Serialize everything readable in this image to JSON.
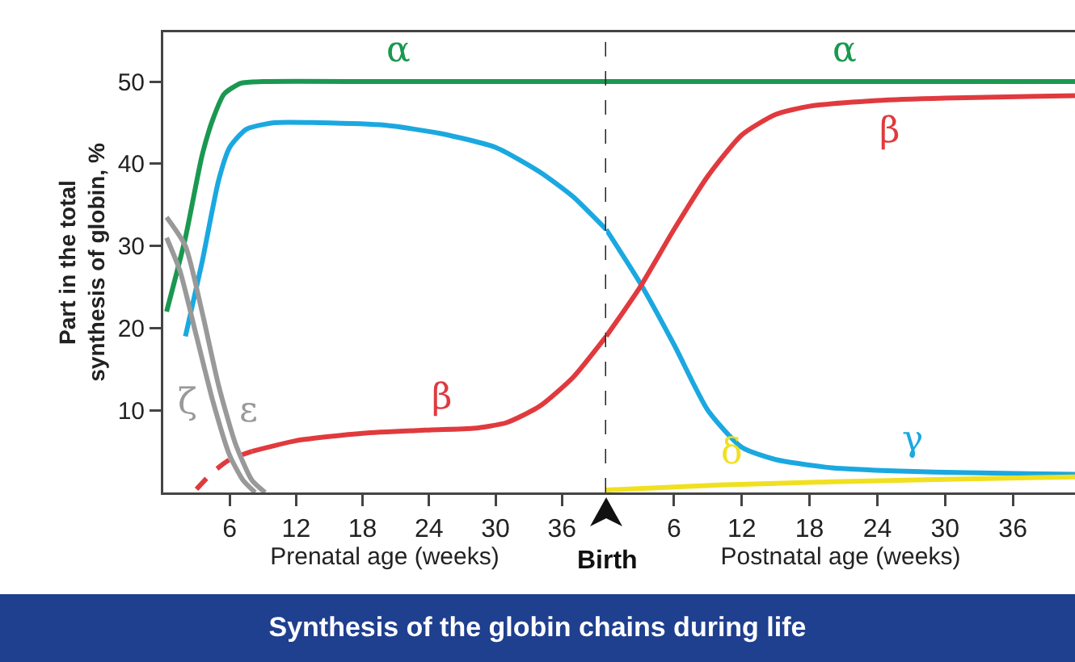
{
  "chart_data": [
    {
      "type": "line",
      "title": "Synthesis of the globin chains during life",
      "xlabel": "Prenatal age (weeks)",
      "ylabel": "Part in the total\nsynthesis of globin, %",
      "xlim": [
        0,
        40
      ],
      "ylim": [
        0,
        56
      ],
      "xticks": [
        6,
        12,
        18,
        24,
        30,
        36
      ],
      "yticks": [
        10,
        20,
        30,
        40,
        50
      ],
      "grid": false,
      "marker": "none",
      "ref_lines": [
        {
          "axis": "x",
          "value": 40,
          "label": "Birth",
          "color": "#222222",
          "line_style": "dashed"
        }
      ],
      "series": [
        {
          "color": "#1a9850",
          "x": [
            0.3,
            2,
            3.5,
            4.5,
            5.5,
            7,
            9,
            20,
            40
          ],
          "values": [
            22,
            31,
            41,
            45.5,
            48.5,
            49.8,
            50,
            50,
            50
          ]
        },
        {
          "color": "#1ba8e0",
          "x": [
            2,
            3.5,
            5,
            6,
            7.5,
            10,
            14,
            20,
            25,
            30,
            34,
            37,
            40
          ],
          "values": [
            19,
            28,
            38,
            42,
            44.2,
            45,
            45,
            44.7,
            43.7,
            42,
            39,
            36,
            32
          ]
        },
        {
          "color": "#e03a3e",
          "line_style": "dashed",
          "x": [
            3,
            4.5,
            6,
            8
          ],
          "values": [
            0.4,
            2.5,
            4,
            5
          ]
        },
        {
          "color": "#e03a3e",
          "x": [
            8,
            12,
            18,
            24,
            28,
            31,
            34,
            37,
            40
          ],
          "values": [
            5,
            6.3,
            7.2,
            7.6,
            7.8,
            8.5,
            10.5,
            14,
            19
          ]
        },
        {
          "color": "#999999",
          "x": [
            0.3,
            2,
            3.5,
            5,
            6.5,
            8,
            9.2
          ],
          "values": [
            33.5,
            30,
            22,
            13,
            6,
            1.5,
            0
          ]
        },
        {
          "color": "#999999",
          "x": [
            0.3,
            1.5,
            3,
            4.5,
            6,
            7.2,
            8.3
          ],
          "values": [
            31,
            27,
            19,
            11,
            4.5,
            1.5,
            0
          ]
        }
      ],
      "annotations": [
        {
          "text": "α",
          "x": 20,
          "y": 50
        },
        {
          "text": "β",
          "x": 24,
          "y": 7.6
        },
        {
          "text": "ε",
          "x": 6.5,
          "y": 6
        },
        {
          "text": "ζ",
          "x": 4.5,
          "y": 11
        }
      ]
    },
    {
      "type": "line",
      "xlabel": "Postnatal age (weeks)",
      "xlim": [
        0,
        41.5
      ],
      "ylim": [
        0,
        56
      ],
      "xticks": [
        6,
        12,
        18,
        24,
        30,
        36
      ],
      "tick_labels": "x",
      "grid": false,
      "marker": "none",
      "series": [
        {
          "color": "#1a9850",
          "x": [
            0,
            20,
            41.5
          ],
          "values": [
            50,
            50,
            50
          ]
        },
        {
          "color": "#1ba8e0",
          "x": [
            0,
            3,
            6,
            9,
            12,
            15,
            20,
            26,
            32,
            41.5
          ],
          "values": [
            32,
            25.5,
            18,
            10,
            5.5,
            4,
            3,
            2.6,
            2.4,
            2.2
          ]
        },
        {
          "color": "#e03a3e",
          "x": [
            0,
            3,
            6,
            9,
            12,
            15,
            18,
            24,
            30,
            41.5
          ],
          "values": [
            19,
            25,
            32,
            38.5,
            43.5,
            46,
            47,
            47.7,
            48,
            48.3
          ]
        },
        {
          "color": "#f0e020",
          "x": [
            0,
            10,
            20,
            30,
            41.5
          ],
          "values": [
            0.3,
            0.9,
            1.3,
            1.6,
            1.9
          ]
        }
      ],
      "annotations": [
        {
          "text": "α",
          "x": 20,
          "y": 50
        },
        {
          "text": "β",
          "x": 24,
          "y": 47.7
        },
        {
          "text": "γ",
          "x": 26,
          "y": 2.6
        },
        {
          "text": "δ",
          "x": 10,
          "y": 0.9
        }
      ]
    }
  ]
}
